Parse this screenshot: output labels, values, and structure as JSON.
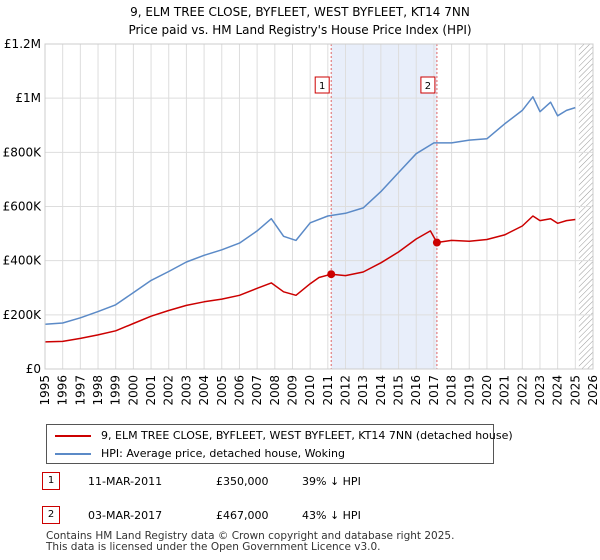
{
  "chart_data": {
    "type": "line",
    "title": "9, ELM TREE CLOSE, BYFLEET, WEST BYFLEET, KT14 7NN",
    "subtitle": "Price paid vs. HM Land Registry's House Price Index (HPI)",
    "xlabel": "",
    "ylabel": "",
    "xlim": [
      1995,
      2026
    ],
    "ylim": [
      0,
      1200000
    ],
    "x_ticks": [
      1995,
      1996,
      1997,
      1998,
      1999,
      2000,
      2001,
      2002,
      2003,
      2004,
      2005,
      2006,
      2007,
      2008,
      2009,
      2010,
      2011,
      2012,
      2013,
      2014,
      2015,
      2016,
      2017,
      2018,
      2019,
      2020,
      2021,
      2022,
      2023,
      2024,
      2025,
      2026
    ],
    "y_ticks": [
      {
        "value": 0,
        "label": "£0"
      },
      {
        "value": 200000,
        "label": "£200K"
      },
      {
        "value": 400000,
        "label": "£400K"
      },
      {
        "value": 600000,
        "label": "£600K"
      },
      {
        "value": 800000,
        "label": "£800K"
      },
      {
        "value": 1000000,
        "label": "£1M"
      },
      {
        "value": 1200000,
        "label": "£1.2M"
      }
    ],
    "grid": true,
    "shaded_period": [
      2011.19,
      2017.17
    ],
    "future_hatch_from": 2025.2,
    "series": [
      {
        "name": "9, ELM TREE CLOSE, BYFLEET, WEST BYFLEET, KT14 7NN (detached house)",
        "color": "#cc0000",
        "x": [
          1995.0,
          1996.0,
          1997.0,
          1998.0,
          1999.0,
          2000.0,
          2001.0,
          2002.0,
          2003.0,
          2004.0,
          2005.0,
          2006.0,
          2007.0,
          2007.8,
          2008.5,
          2009.2,
          2010.0,
          2010.5,
          2011.19,
          2012.0,
          2013.0,
          2014.0,
          2015.0,
          2016.0,
          2016.8,
          2017.17,
          2018.0,
          2019.0,
          2020.0,
          2021.0,
          2022.0,
          2022.6,
          2023.0,
          2023.6,
          2024.0,
          2024.5,
          2025.0
        ],
        "values": [
          100000,
          102000,
          113000,
          126000,
          141000,
          168000,
          195000,
          216000,
          235000,
          248000,
          258000,
          272000,
          298000,
          318000,
          285000,
          272000,
          315000,
          338000,
          350000,
          345000,
          358000,
          392000,
          432000,
          480000,
          510000,
          467000,
          475000,
          472000,
          478000,
          495000,
          528000,
          565000,
          548000,
          555000,
          538000,
          548000,
          552000
        ]
      },
      {
        "name": "HPI: Average price, detached house, Woking",
        "color": "#5b8ac7",
        "x": [
          1995.0,
          1996.0,
          1997.0,
          1998.0,
          1999.0,
          2000.0,
          2001.0,
          2002.0,
          2003.0,
          2004.0,
          2005.0,
          2006.0,
          2007.0,
          2007.8,
          2008.5,
          2009.2,
          2010.0,
          2011.0,
          2012.0,
          2013.0,
          2014.0,
          2015.0,
          2016.0,
          2017.0,
          2018.0,
          2019.0,
          2020.0,
          2021.0,
          2022.0,
          2022.6,
          2023.0,
          2023.6,
          2024.0,
          2024.5,
          2025.0
        ],
        "values": [
          165000,
          170000,
          189000,
          212000,
          237000,
          282000,
          327000,
          360000,
          395000,
          420000,
          440000,
          465000,
          510000,
          555000,
          490000,
          475000,
          540000,
          565000,
          575000,
          595000,
          655000,
          725000,
          795000,
          835000,
          835000,
          845000,
          850000,
          905000,
          955000,
          1005000,
          950000,
          985000,
          935000,
          955000,
          965000
        ]
      }
    ],
    "sales": [
      {
        "num": "1",
        "x": 2011.19,
        "value": 350000
      },
      {
        "num": "2",
        "x": 2017.17,
        "value": 467000
      }
    ]
  },
  "legend": {
    "items": [
      {
        "label": "9, ELM TREE CLOSE, BYFLEET, WEST BYFLEET, KT14 7NN (detached house)",
        "color": "#cc0000"
      },
      {
        "label": "HPI: Average price, detached house, Woking",
        "color": "#5b8ac7"
      }
    ]
  },
  "sales_table": [
    {
      "num": "1",
      "date": "11-MAR-2011",
      "price": "£350,000",
      "hpi": "39% ↓ HPI"
    },
    {
      "num": "2",
      "date": "03-MAR-2017",
      "price": "£467,000",
      "hpi": "43% ↓ HPI"
    }
  ],
  "footer": {
    "line1": "Contains HM Land Registry data © Crown copyright and database right 2025.",
    "line2": "This data is licensed under the Open Government Licence v3.0."
  }
}
